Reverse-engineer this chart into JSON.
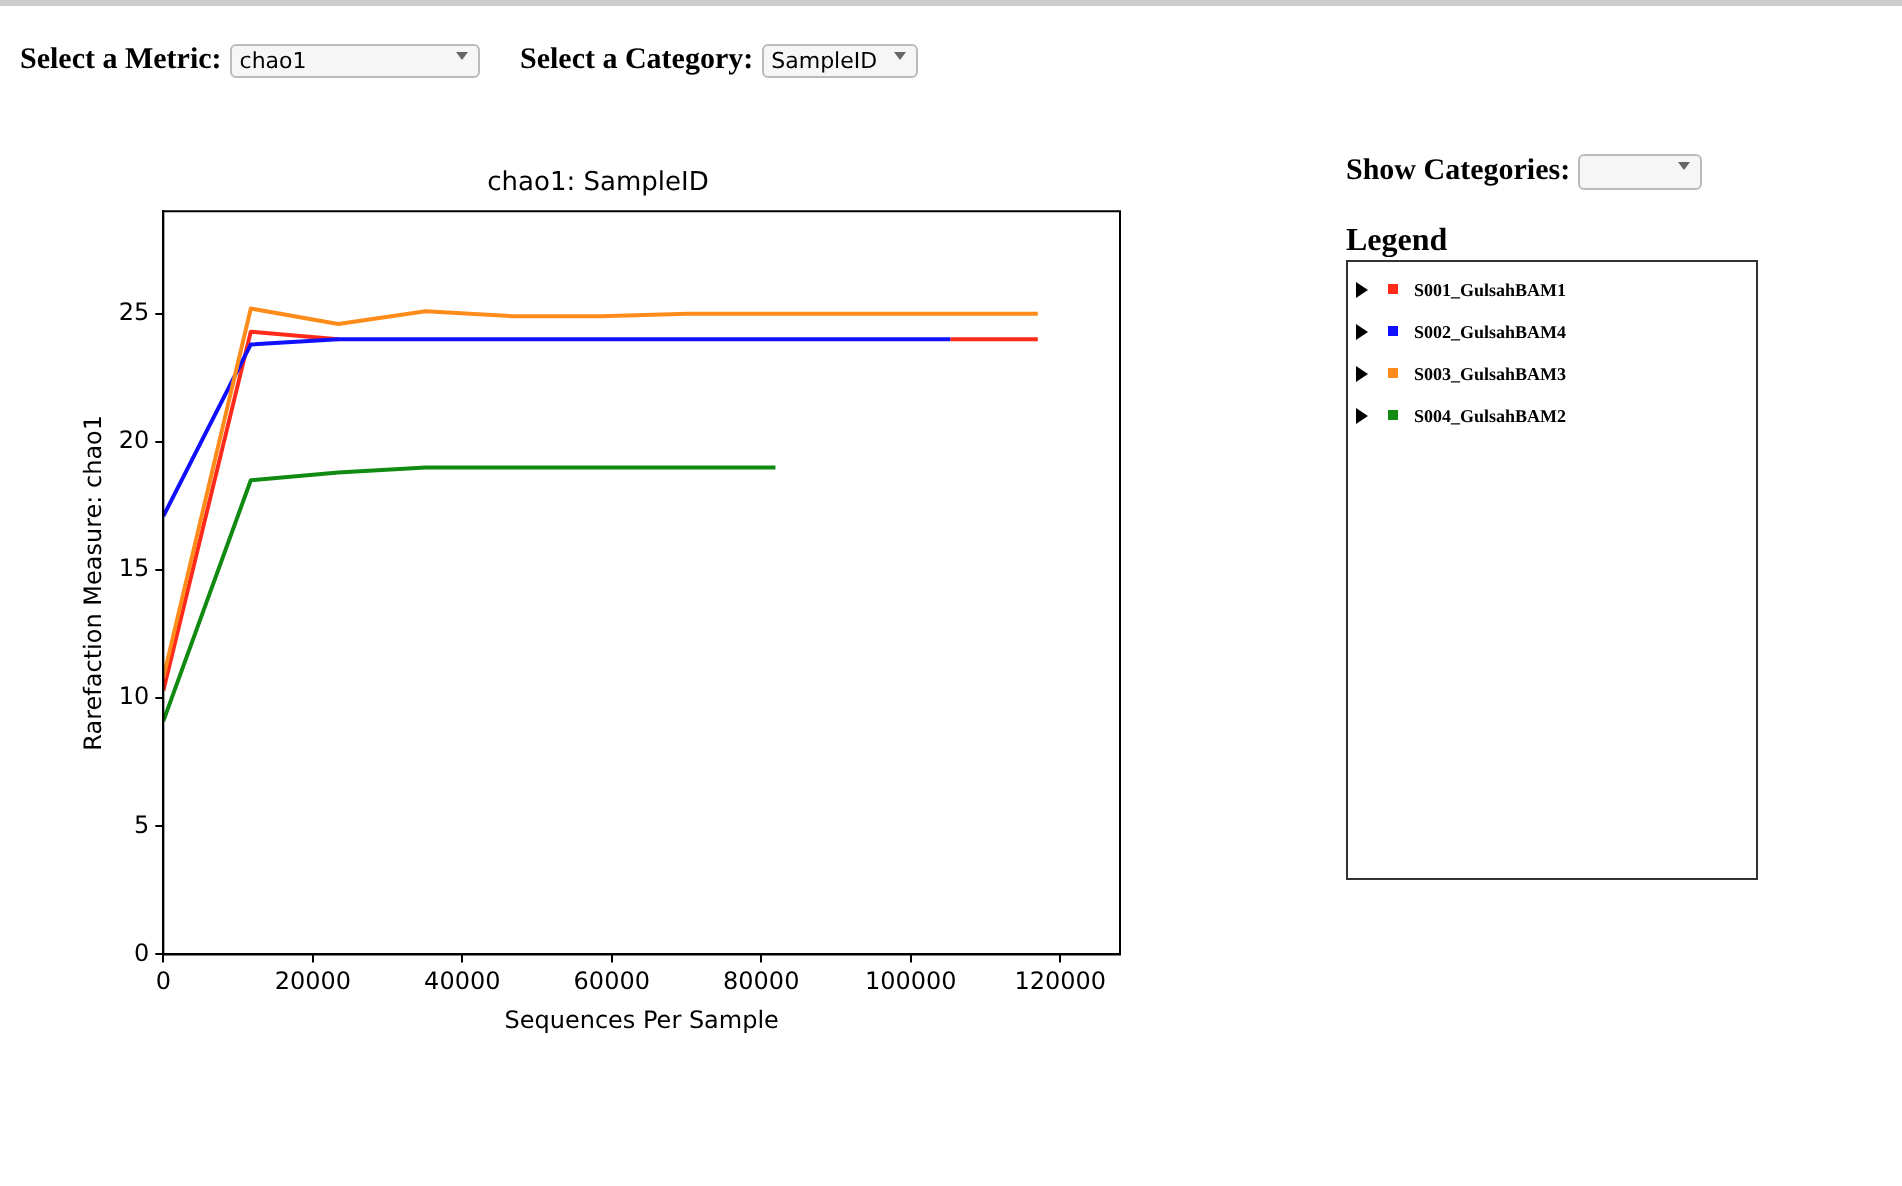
{
  "chart_data": {
    "type": "line",
    "title": "chao1: SampleID",
    "xlabel": "Sequences Per Sample",
    "ylabel": "Rarefaction Measure: chao1",
    "legend_title": "Legend",
    "annotations": [
      "Select a Metric:",
      "chao1",
      "Select a Category:",
      "SampleID",
      "Show Categories:"
    ],
    "xlim": [
      0,
      128000
    ],
    "xticks": [
      0,
      20000,
      40000,
      60000,
      80000,
      100000,
      120000
    ],
    "ylim": [
      0,
      29
    ],
    "yticks": [
      0,
      5,
      10,
      15,
      20,
      25
    ],
    "grid": false,
    "legend": "right",
    "marker": "none",
    "line_style": "solid",
    "series": [
      {
        "name": "S001_GulsahBAM1",
        "color": "#ff2a1a",
        "x": [
          0,
          11700,
          23400,
          35100,
          46800,
          58500,
          70200,
          81900,
          93600,
          105300,
          117000
        ],
        "values": [
          10.3,
          24.3,
          24.0,
          null,
          null,
          null,
          null,
          null,
          null,
          24.0,
          24.0
        ]
      },
      {
        "name": "S002_GulsahBAM4",
        "color": "#1010ff",
        "x": [
          0,
          11700,
          23400,
          35100,
          46800,
          58500,
          70200,
          81900,
          93600,
          105300
        ],
        "values": [
          17.1,
          23.8,
          24.0,
          24.0,
          24.0,
          24.0,
          24.0,
          24.0,
          24.0,
          24.0
        ]
      },
      {
        "name": "S003_GulsahBAM3",
        "color": "#ff8c1a",
        "x": [
          0,
          11700,
          23400,
          35100,
          46800,
          58500,
          70200,
          81900,
          93600,
          105300,
          117000
        ],
        "values": [
          10.8,
          25.2,
          24.6,
          25.1,
          24.9,
          24.9,
          25.0,
          25.0,
          25.0,
          25.0,
          25.0
        ]
      },
      {
        "name": "S004_GulsahBAM2",
        "color": "#108a10",
        "x": [
          0,
          11700,
          23400,
          35100,
          46800,
          58500,
          70200,
          81900
        ],
        "values": [
          9.1,
          18.5,
          18.8,
          19.0,
          19.0,
          19.0,
          19.0,
          19.0
        ]
      }
    ]
  }
}
